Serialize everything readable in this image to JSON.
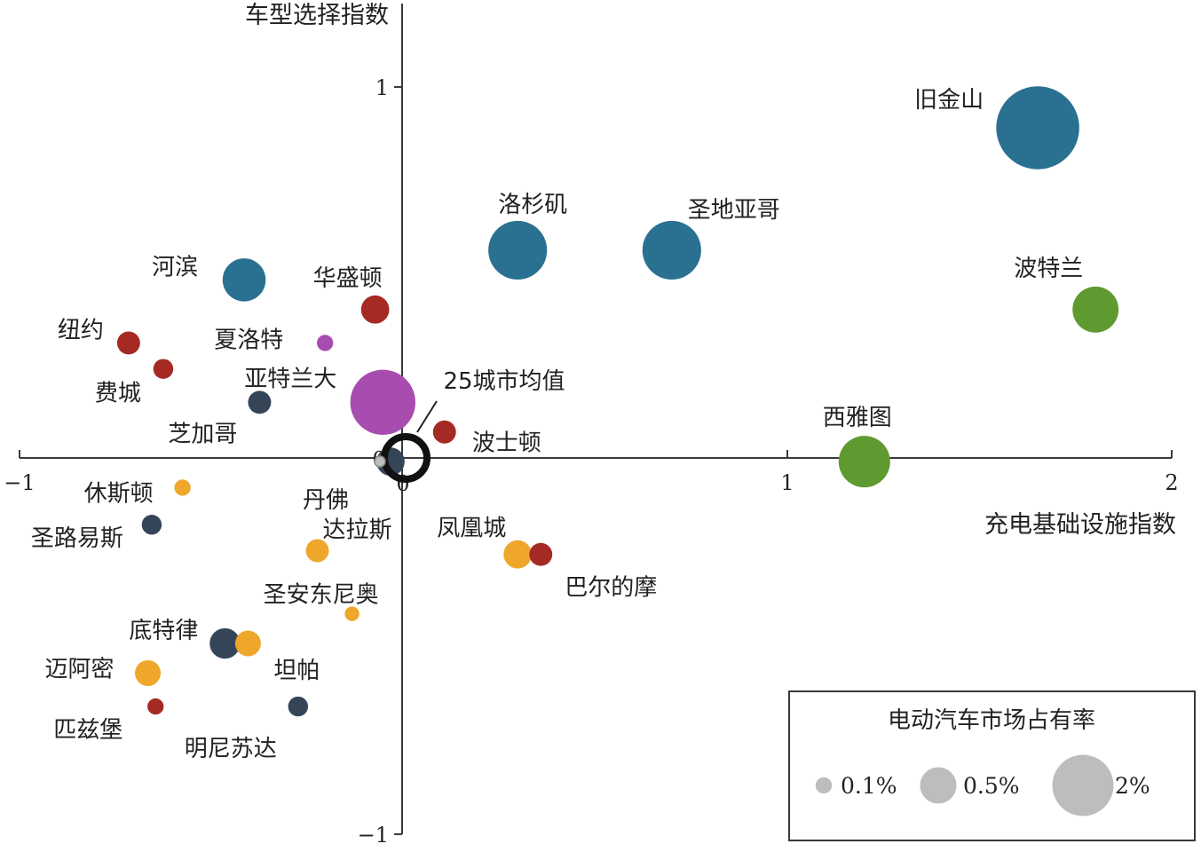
{
  "chart_data": {
    "type": "scatter",
    "subtype": "bubble",
    "xlabel": "充电基础设施指数",
    "ylabel": "车型选择指数",
    "xlim": [
      -1,
      2
    ],
    "ylim": [
      -1,
      1.1
    ],
    "x_ticks": [
      {
        "value": -1,
        "label": "−1"
      },
      {
        "value": 1,
        "label": "1"
      },
      {
        "value": 2,
        "label": "2"
      }
    ],
    "y_ticks": [
      {
        "value": 1,
        "label": "1"
      },
      {
        "value": -1,
        "label": "−1"
      }
    ],
    "origin_ticks": {
      "x": "0",
      "y": "0"
    },
    "grid": false,
    "colors": {
      "blue": "#2a7090",
      "red": "#a52a24",
      "purple": "#a84cb0",
      "navy": "#354558",
      "orange": "#eea72a",
      "green": "#5e9a30"
    },
    "points": [
      {
        "name": "旧金山",
        "x": 1.65,
        "y": 0.89,
        "share": 2.6,
        "color": "blue"
      },
      {
        "name": "洛杉矶",
        "x": 0.3,
        "y": 0.56,
        "share": 1.3,
        "color": "blue"
      },
      {
        "name": "圣地亚哥",
        "x": 0.7,
        "y": 0.56,
        "share": 1.3,
        "color": "blue"
      },
      {
        "name": "河滨",
        "x": -0.41,
        "y": 0.48,
        "share": 0.7,
        "color": "blue"
      },
      {
        "name": "波特兰",
        "x": 1.8,
        "y": 0.4,
        "share": 0.8,
        "color": "green"
      },
      {
        "name": "西雅图",
        "x": 1.2,
        "y": -0.01,
        "share": 1.0,
        "color": "green"
      },
      {
        "name": "华盛顿",
        "x": -0.07,
        "y": 0.4,
        "share": 0.3,
        "color": "red"
      },
      {
        "name": "纽约",
        "x": -0.71,
        "y": 0.31,
        "share": 0.2,
        "color": "red"
      },
      {
        "name": "费城",
        "x": -0.62,
        "y": 0.24,
        "share": 0.15,
        "color": "red"
      },
      {
        "name": "波士顿",
        "x": 0.11,
        "y": 0.07,
        "share": 0.2,
        "color": "red"
      },
      {
        "name": "巴尔的摩",
        "x": 0.36,
        "y": -0.26,
        "share": 0.2,
        "color": "red"
      },
      {
        "name": "匹兹堡",
        "x": -0.64,
        "y": -0.67,
        "share": 0.1,
        "color": "red"
      },
      {
        "name": "夏洛特",
        "x": -0.2,
        "y": 0.31,
        "share": 0.1,
        "color": "purple"
      },
      {
        "name": "亚特兰大",
        "x": -0.05,
        "y": 0.15,
        "share": 1.6,
        "color": "purple"
      },
      {
        "name": "芝加哥",
        "x": -0.37,
        "y": 0.15,
        "share": 0.2,
        "color": "navy"
      },
      {
        "name": "丹佛",
        "x": -0.03,
        "y": -0.01,
        "share": 0.3,
        "color": "navy"
      },
      {
        "name": "圣路易斯",
        "x": -0.65,
        "y": -0.18,
        "share": 0.15,
        "color": "navy"
      },
      {
        "name": "底特律",
        "x": -0.46,
        "y": -0.5,
        "share": 0.35,
        "color": "navy"
      },
      {
        "name": "明尼苏达",
        "x": -0.27,
        "y": -0.67,
        "share": 0.15,
        "color": "navy"
      },
      {
        "name": "休斯顿",
        "x": -0.57,
        "y": -0.08,
        "share": 0.1,
        "color": "orange"
      },
      {
        "name": "达拉斯",
        "x": -0.22,
        "y": -0.25,
        "share": 0.2,
        "color": "orange"
      },
      {
        "name": "圣安东尼奥",
        "x": -0.13,
        "y": -0.42,
        "share": 0.08,
        "color": "orange"
      },
      {
        "name": "坦帕",
        "x": -0.4,
        "y": -0.5,
        "share": 0.25,
        "color": "orange"
      },
      {
        "name": "迈阿密",
        "x": -0.66,
        "y": -0.58,
        "share": 0.25,
        "color": "orange"
      },
      {
        "name": "凤凰城",
        "x": 0.3,
        "y": -0.26,
        "share": 0.3,
        "color": "orange"
      }
    ],
    "average_point": {
      "name": "25城市均值",
      "x": 0.0,
      "y": 0.0,
      "share": 0.5
    },
    "legend": {
      "title": "电动汽车市场占有率",
      "position": "bottom-right",
      "items": [
        {
          "label": "0.1%",
          "share": 0.1
        },
        {
          "label": "0.5%",
          "share": 0.5
        },
        {
          "label": "2%",
          "share": 2.0
        }
      ]
    }
  }
}
